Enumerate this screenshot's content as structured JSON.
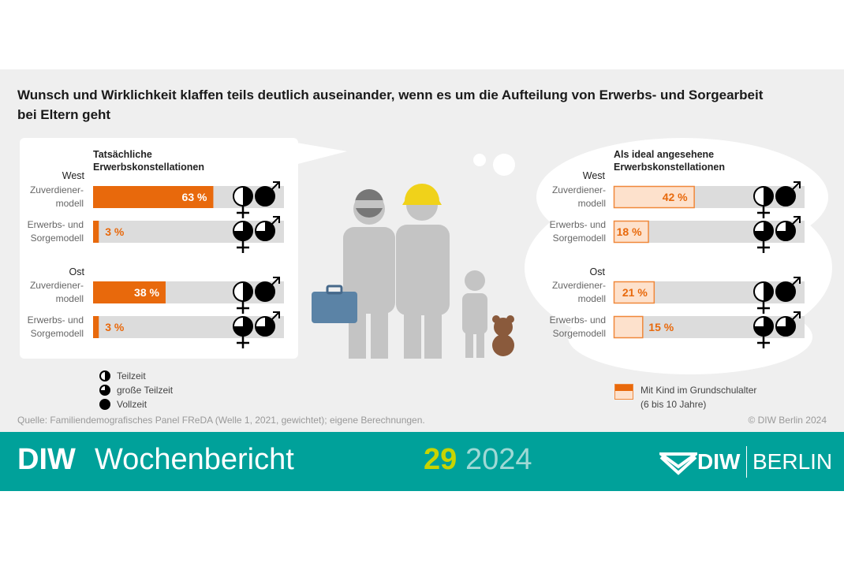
{
  "title": "Wunsch und Wirklichkeit klaffen teils deutlich auseinander, wenn es um die Aufteilung von Erwerbs- und Sorgearbeit bei Eltern geht",
  "chart_data": [
    {
      "type": "bar",
      "title": "Tatsächliche Erwerbskonstellationen",
      "xlim": [
        0,
        100
      ],
      "unit": "%",
      "groups": [
        {
          "name": "West",
          "categories": [
            "Zuverdiener-modell",
            "Erwerbs- und Sorgemodell"
          ],
          "values": [
            63,
            3
          ]
        },
        {
          "name": "Ost",
          "categories": [
            "Zuverdiener-modell",
            "Erwerbs- und Sorgemodell"
          ],
          "values": [
            38,
            3
          ]
        }
      ],
      "labels": {
        "West": [
          "63 %",
          "3 %"
        ],
        "Ost": [
          "38 %",
          "3 %"
        ]
      }
    },
    {
      "type": "bar",
      "title": "Als ideal angesehene Erwerbskonstellationen",
      "xlim": [
        0,
        100
      ],
      "unit": "%",
      "groups": [
        {
          "name": "West",
          "categories": [
            "Zuverdiener-modell",
            "Erwerbs- und Sorgemodell"
          ],
          "values": [
            42,
            18
          ]
        },
        {
          "name": "Ost",
          "categories": [
            "Zuverdiener-modell",
            "Erwerbs- und Sorgemodell"
          ],
          "values": [
            21,
            15
          ]
        }
      ],
      "labels": {
        "West": [
          "42 %",
          "18 %"
        ],
        "Ost": [
          "21 %",
          "15 %"
        ]
      }
    }
  ],
  "row_icons": {
    "Zuverdiener-modell": {
      "female": "Teilzeit",
      "male": "Vollzeit"
    },
    "Erwerbs- und Sorgemodell": {
      "female": "große Teilzeit",
      "male": "große Teilzeit"
    }
  },
  "left": {
    "header1": "Tatsächliche",
    "header2": "Erwerbskonstellationen",
    "west": "West",
    "ost": "Ost",
    "row1a": "Zuverdiener-",
    "row1b": "modell",
    "row2a": "Erwerbs- und",
    "row2b": "Sorgemodell"
  },
  "right": {
    "header1": "Als ideal angesehene",
    "header2": "Erwerbskonstellationen",
    "west": "West",
    "ost": "Ost"
  },
  "legend": {
    "teilzeit": "Teilzeit",
    "gross": "große Teilzeit",
    "voll": "Vollzeit",
    "kind1": "Mit Kind im Grundschulalter",
    "kind2": "(6 bis 10 Jahre)"
  },
  "source": "Quelle: Familiendemografisches Panel FReDA (Welle 1, 2021, gewichtet); eigene Berechnungen.",
  "copyright": "© DIW Berlin 2024",
  "footer": {
    "diw": "DIW",
    "wochenbericht": "Wochenbericht",
    "issue": "29",
    "year": "2024",
    "logo_diw": "DIW",
    "logo_berlin": "BERLIN"
  },
  "colors": {
    "actual": "#e8690c",
    "ideal_fill": "#fde1cc",
    "ideal_stroke": "#f0883a",
    "track": "#dcdcdc",
    "teal": "#00a19a",
    "issue": "#c8d400"
  }
}
